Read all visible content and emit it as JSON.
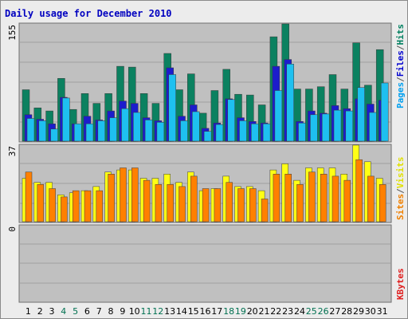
{
  "chart_data": {
    "type": "bar",
    "title": "Daily usage for December 2010",
    "categories": [
      "1",
      "2",
      "3",
      "4",
      "5",
      "6",
      "7",
      "8",
      "9",
      "10",
      "11",
      "12",
      "13",
      "14",
      "15",
      "16",
      "17",
      "18",
      "19",
      "20",
      "21",
      "22",
      "23",
      "24",
      "25",
      "26",
      "27",
      "28",
      "29",
      "30",
      "31"
    ],
    "weekend_days": [
      "4",
      "5",
      "11",
      "12",
      "18",
      "19",
      "25",
      "26"
    ],
    "panels": [
      {
        "name": "traffic",
        "ymax_label": "155",
        "ylim": [
          0,
          155
        ],
        "axis_legend": [
          {
            "label": "Pages",
            "color": "#00a0f0"
          },
          {
            "label": "/",
            "color": "#555555"
          },
          {
            "label": "Files",
            "color": "#0000d0"
          },
          {
            "label": "/",
            "color": "#555555"
          },
          {
            "label": "Hits",
            "color": "#008060"
          }
        ],
        "series": [
          {
            "name": "Hits",
            "color": "#0b8160",
            "values": [
              68,
              44,
              40,
              83,
              42,
              63,
              50,
              63,
              99,
              98,
              63,
              50,
              116,
              68,
              89,
              37,
              67,
              95,
              62,
              61,
              48,
              138,
              155,
              69,
              69,
              72,
              88,
              69,
              130,
              74,
              121
            ]
          },
          {
            "name": "Files",
            "color": "#1c1ccc",
            "values": [
              35,
              29,
              23,
              58,
              23,
              33,
              28,
              40,
              53,
              50,
              31,
              27,
              97,
              33,
              48,
              17,
              24,
              56,
              31,
              26,
              24,
              99,
              108,
              26,
              40,
              37,
              47,
              43,
              56,
              49,
              54
            ]
          },
          {
            "name": "Pages",
            "color": "#1ec0f0",
            "values": [
              30,
              27,
              16,
              57,
              23,
              23,
              27,
              31,
              43,
              38,
              28,
              25,
              88,
              27,
              39,
              13,
              22,
              55,
              27,
              23,
              23,
              67,
              102,
              24,
              35,
              36,
              41,
              40,
              71,
              38,
              77
            ]
          }
        ]
      },
      {
        "name": "visits",
        "ymax_label": "37",
        "ylim": [
          0,
          37
        ],
        "axis_legend": [
          {
            "label": "Sites",
            "color": "#f08000"
          },
          {
            "label": "/",
            "color": "#555555"
          },
          {
            "label": "Visits",
            "color": "#e0e000"
          }
        ],
        "series": [
          {
            "name": "Visits",
            "color": "#ffff14",
            "values": [
              21,
              19,
              19,
              13,
              14,
              15,
              17,
              24,
              25,
              25,
              21,
              21,
              23,
              19,
              24,
              15,
              16,
              22,
              17,
              17,
              15,
              25,
              28,
              20,
              26,
              26,
              26,
              23,
              37,
              29,
              21
            ]
          },
          {
            "name": "Sites",
            "color": "#ff8000",
            "values": [
              24,
              18,
              16,
              12,
              15,
              15,
              15,
              23,
              26,
              26,
              20,
              18,
              18,
              17,
              22,
              16,
              16,
              19,
              16,
              16,
              11,
              23,
              23,
              18,
              24,
              23,
              22,
              20,
              30,
              22,
              18
            ]
          }
        ]
      },
      {
        "name": "kbytes",
        "ymax_label": "0",
        "axis_legend": [
          {
            "label": "KBytes",
            "color": "#e02020"
          }
        ],
        "series": []
      }
    ]
  },
  "colors": {
    "plot_bg": "#c0c0c0",
    "frame_bg": "#ececec",
    "title": "#0000c0",
    "weekday_label": "#000000",
    "weekend_label": "#007050",
    "grid": "#a0a0a0"
  }
}
